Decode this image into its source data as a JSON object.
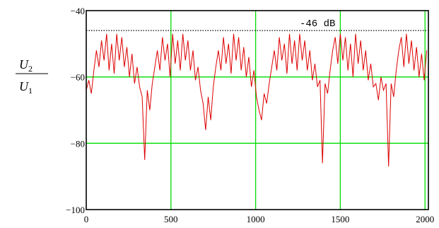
{
  "chart_data": {
    "type": "line",
    "title": "",
    "xlabel": "",
    "ylabel": {
      "num_base": "U",
      "num_sub": "2",
      "den_base": "U",
      "den_sub": "1"
    },
    "xlim": [
      0,
      2020
    ],
    "ylim": [
      -100,
      -40
    ],
    "xticks": [
      {
        "value": 0,
        "label": "0"
      },
      {
        "value": 500,
        "label": "500"
      },
      {
        "value": 1000,
        "label": "1000"
      },
      {
        "value": 1500,
        "label": "1500"
      },
      {
        "value": 2000,
        "label": "2000"
      }
    ],
    "yticks": [
      {
        "value": -40,
        "label": "−40"
      },
      {
        "value": -60,
        "label": "−60"
      },
      {
        "value": -80,
        "label": "−80"
      },
      {
        "value": -100,
        "label": "−100"
      }
    ],
    "grid": true,
    "reference_line": {
      "y": -46,
      "label": "-46 dB"
    },
    "colors": {
      "series": "#dd0000",
      "grid": "#00dd00",
      "frame": "#000000",
      "reference": "#000000"
    },
    "series": [
      {
        "x": [
          0,
          15,
          30,
          45,
          60,
          75,
          90,
          105,
          120,
          135,
          150,
          165,
          180,
          195,
          210,
          225,
          240,
          255,
          270,
          285,
          300,
          315,
          330,
          345,
          360,
          375,
          390,
          405,
          420,
          435,
          450,
          465,
          480,
          495,
          510,
          525,
          540,
          555,
          570,
          585,
          600,
          615,
          630,
          645,
          660,
          675,
          690,
          705,
          720,
          735,
          750,
          765,
          780,
          795,
          810,
          825,
          840,
          855,
          870,
          885,
          900,
          915,
          930,
          945,
          960,
          975,
          990,
          1005,
          1020,
          1035,
          1050,
          1065,
          1080,
          1095,
          1110,
          1125,
          1140,
          1155,
          1170,
          1185,
          1200,
          1215,
          1230,
          1245,
          1260,
          1275,
          1290,
          1305,
          1320,
          1335,
          1350,
          1365,
          1380,
          1395,
          1410,
          1425,
          1440,
          1455,
          1470,
          1485,
          1500,
          1515,
          1530,
          1545,
          1560,
          1575,
          1590,
          1605,
          1620,
          1635,
          1650,
          1665,
          1680,
          1695,
          1710,
          1725,
          1740,
          1755,
          1770,
          1785,
          1800,
          1815,
          1830,
          1845,
          1860,
          1875,
          1890,
          1905,
          1920,
          1935,
          1950,
          1965,
          1980,
          1995,
          2010
        ],
        "values": [
          -64,
          -61,
          -65,
          -58,
          -52,
          -57,
          -49,
          -55,
          -47,
          -58,
          -50,
          -59,
          -47,
          -55,
          -48,
          -57,
          -51,
          -60,
          -53,
          -62,
          -57,
          -63,
          -66,
          -85,
          -64,
          -70,
          -62,
          -57,
          -52,
          -58,
          -48,
          -55,
          -50,
          -60,
          -47,
          -56,
          -49,
          -58,
          -47,
          -55,
          -49,
          -58,
          -52,
          -61,
          -57,
          -64,
          -68,
          -76,
          -66,
          -73,
          -63,
          -57,
          -52,
          -58,
          -48,
          -56,
          -50,
          -59,
          -47,
          -55,
          -48,
          -58,
          -51,
          -60,
          -54,
          -63,
          -58,
          -66,
          -70,
          -73,
          -65,
          -68,
          -62,
          -57,
          -52,
          -58,
          -48,
          -55,
          -50,
          -59,
          -47,
          -56,
          -49,
          -58,
          -47,
          -55,
          -49,
          -58,
          -52,
          -61,
          -56,
          -63,
          -61,
          -86,
          -62,
          -65,
          -58,
          -52,
          -48,
          -56,
          -47,
          -55,
          -48,
          -58,
          -50,
          -60,
          -47,
          -56,
          -49,
          -58,
          -52,
          -61,
          -56,
          -63,
          -62,
          -67,
          -60,
          -64,
          -62,
          -87,
          -62,
          -66,
          -58,
          -52,
          -48,
          -57,
          -47,
          -56,
          -49,
          -58,
          -51,
          -60,
          -53,
          -61,
          -52
        ]
      }
    ]
  }
}
